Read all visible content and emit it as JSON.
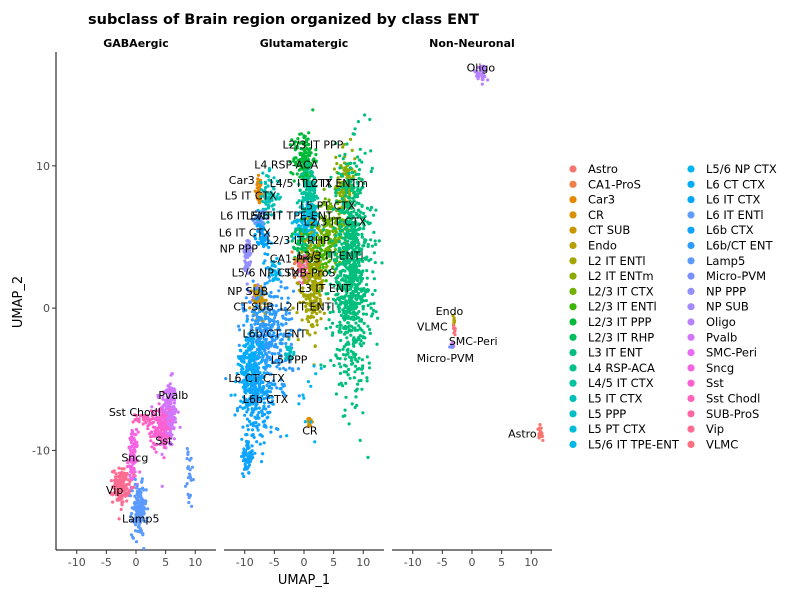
{
  "chart_data": {
    "type": "scatter",
    "title": "subclass of Brain region organized by class ENT",
    "xlabel": "UMAP_1",
    "ylabel": "UMAP_2",
    "xlim": [
      -13.5,
      13.5
    ],
    "ylim": [
      -17,
      18
    ],
    "xticks": [
      -10,
      -5,
      0,
      5,
      10
    ],
    "yticks": [
      -10,
      0,
      10
    ],
    "grid": false,
    "legend_position": "right",
    "facets": [
      {
        "name": "GABAergic",
        "clusters": [
          {
            "label": "Pvalb",
            "series": "Pvalb",
            "cx": 5.5,
            "cy": -7.5,
            "sx": 0.7,
            "sy": 1.2,
            "n": 240,
            "label_x": 6.3,
            "label_y": -6.1
          },
          {
            "label": "Sst Chodl",
            "series": "Sst Chodl",
            "cx": 1.5,
            "cy": -7.8,
            "sx": 0.8,
            "sy": 0.25,
            "n": 40,
            "label_x": -0.2,
            "label_y": -7.3
          },
          {
            "label": "Sst",
            "series": "Sst",
            "cx": 4.0,
            "cy": -8.5,
            "sx": 0.8,
            "sy": 0.7,
            "n": 120,
            "label_x": 4.7,
            "label_y": -9.3
          },
          {
            "label": "Sncg",
            "series": "Sncg",
            "cx": -0.5,
            "cy": -10.5,
            "sx": 0.4,
            "sy": 0.9,
            "n": 100,
            "label_x": -0.2,
            "label_y": -10.5
          },
          {
            "label": "Vip",
            "series": "Vip",
            "cx": -2.5,
            "cy": -12.5,
            "sx": 0.7,
            "sy": 0.6,
            "n": 150,
            "label_x": -3.6,
            "label_y": -12.8
          },
          {
            "label": "Lamp5",
            "series": "Lamp5",
            "cx": 0.5,
            "cy": -14.2,
            "sx": 0.6,
            "sy": 0.9,
            "n": 150,
            "label_x": 0.8,
            "label_y": -14.8
          },
          {
            "label": "",
            "series": "Lamp5",
            "cx": 9.0,
            "cy": -12.0,
            "sx": 0.3,
            "sy": 1.2,
            "n": 25,
            "label_x": 0,
            "label_y": 0
          }
        ]
      },
      {
        "name": "Glutamatergic",
        "clusters": [
          {
            "label": "L2/3 IT PPP",
            "series": "L2/3 IT PPP",
            "cx": 0.0,
            "cy": 10.5,
            "sx": 0.9,
            "sy": 1.0,
            "n": 150,
            "label_x": 1.5,
            "label_y": 11.5
          },
          {
            "label": "L4 RSP-ACA",
            "series": "L4 RSP-ACA",
            "cx": 1.0,
            "cy": 8.5,
            "sx": 0.6,
            "sy": 0.8,
            "n": 70,
            "label_x": -3.0,
            "label_y": 10.1
          },
          {
            "label": "Car3",
            "series": "Car3",
            "cx": -7.5,
            "cy": 8.3,
            "sx": 0.3,
            "sy": 0.5,
            "n": 35,
            "label_x": -10.5,
            "label_y": 9.0
          },
          {
            "label": "L4/5 IT CTX",
            "series": "L4/5 IT CTX",
            "cx": 1.0,
            "cy": 7.5,
            "sx": 0.8,
            "sy": 0.8,
            "n": 90,
            "label_x": -0.5,
            "label_y": 8.8
          },
          {
            "label": "L2 IT ENTm",
            "series": "L2 IT ENTm",
            "cx": 7.0,
            "cy": 8.5,
            "sx": 0.8,
            "sy": 1.3,
            "n": 130,
            "label_x": 5.5,
            "label_y": 8.8
          },
          {
            "label": "L5 IT CTX",
            "series": "L5 IT CTX",
            "cx": -6.0,
            "cy": 7.8,
            "sx": 0.9,
            "sy": 0.8,
            "n": 80,
            "label_x": -9.0,
            "label_y": 7.9
          },
          {
            "label": "L5 PT CTX",
            "series": "L5 PT CTX",
            "cx": 1.5,
            "cy": 6.0,
            "sx": 0.6,
            "sy": 0.6,
            "n": 60,
            "label_x": 4.0,
            "label_y": 7.2
          },
          {
            "label": "L6 IT ENTl",
            "series": "L6 IT ENTl",
            "cx": -7.5,
            "cy": 6.2,
            "sx": 0.5,
            "sy": 0.4,
            "n": 50,
            "label_x": -9.5,
            "label_y": 6.5
          },
          {
            "label": "L5/6 IT TPE-ENT",
            "series": "L5/6 IT TPE-ENT",
            "cx": 0.0,
            "cy": 5.8,
            "sx": 0.9,
            "sy": 0.6,
            "n": 80,
            "label_x": -2.5,
            "label_y": 6.5
          },
          {
            "label": "L2/3 IT CTX",
            "series": "L2/3 IT CTX",
            "cx": 4.5,
            "cy": 5.5,
            "sx": 1.2,
            "sy": 1.2,
            "n": 150,
            "label_x": 5.2,
            "label_y": 6.1
          },
          {
            "label": "L6 IT CTX",
            "series": "L6 IT CTX",
            "cx": -7.0,
            "cy": 5.0,
            "sx": 0.6,
            "sy": 0.5,
            "n": 50,
            "label_x": -10.0,
            "label_y": 5.3
          },
          {
            "label": "L2/3 IT RHP",
            "series": "L2/3 IT RHP",
            "cx": -0.5,
            "cy": 4.5,
            "sx": 0.8,
            "sy": 0.6,
            "n": 60,
            "label_x": -1.0,
            "label_y": 4.8
          },
          {
            "label": "NP PPP",
            "series": "NP PPP",
            "cx": -9.5,
            "cy": 3.5,
            "sx": 0.3,
            "sy": 0.9,
            "n": 60,
            "label_x": -11.0,
            "label_y": 4.2
          },
          {
            "label": "CA1-ProS",
            "series": "CA1-ProS",
            "cx": -1.0,
            "cy": 3.2,
            "sx": 0.5,
            "sy": 0.4,
            "n": 30,
            "label_x": -1.5,
            "label_y": 3.5
          },
          {
            "label": "L2/3 IT ENTl",
            "series": "L2/3 IT ENTl",
            "cx": 2.5,
            "cy": 3.5,
            "sx": 1.0,
            "sy": 0.8,
            "n": 90,
            "label_x": 4.5,
            "label_y": 3.7
          },
          {
            "label": "L3 IT ENT",
            "series": "L3 IT ENT",
            "cx": 8.0,
            "cy": 2.5,
            "sx": 1.7,
            "sy": 3.8,
            "n": 900,
            "label_x": 3.5,
            "label_y": 1.4
          },
          {
            "label": "L5/6 NP CTX",
            "series": "L5/6 NP CTX",
            "cx": -5.0,
            "cy": 2.5,
            "sx": 0.6,
            "sy": 0.4,
            "n": 40,
            "label_x": -6.5,
            "label_y": 2.5
          },
          {
            "label": "SUB-ProS",
            "series": "SUB-ProS",
            "cx": 0.0,
            "cy": 2.5,
            "sx": 0.6,
            "sy": 0.4,
            "n": 40,
            "label_x": 1.0,
            "label_y": 2.5
          },
          {
            "label": "NP SUB",
            "series": "NP SUB",
            "cx": -8.0,
            "cy": 0.8,
            "sx": 0.5,
            "sy": 0.4,
            "n": 40,
            "label_x": -9.5,
            "label_y": 1.2
          },
          {
            "label": "L2 IT ENTl",
            "series": "L2 IT ENTl",
            "cx": 1.5,
            "cy": 1.5,
            "sx": 1.0,
            "sy": 1.6,
            "n": 220,
            "label_x": 0.5,
            "label_y": 0.1
          },
          {
            "label": "CT SUB",
            "series": "CT SUB",
            "cx": -7.5,
            "cy": 0.5,
            "sx": 0.6,
            "sy": 0.6,
            "n": 60,
            "label_x": -8.5,
            "label_y": 0.1
          },
          {
            "label": "L6b/CT ENT",
            "series": "L6b/CT ENT",
            "cx": -6.0,
            "cy": -2.0,
            "sx": 2.0,
            "sy": 2.0,
            "n": 350,
            "label_x": -5.0,
            "label_y": -1.8
          },
          {
            "label": "L5 PPP",
            "series": "L5 PPP",
            "cx": -2.5,
            "cy": -3.0,
            "sx": 0.4,
            "sy": 0.3,
            "n": 20,
            "label_x": -2.5,
            "label_y": -3.6
          },
          {
            "label": "L6 CT CTX",
            "series": "L6 CT CTX",
            "cx": -9.0,
            "cy": -4.5,
            "sx": 1.0,
            "sy": 1.3,
            "n": 200,
            "label_x": -8.0,
            "label_y": -4.9
          },
          {
            "label": "L6b CTX",
            "series": "L6b CTX",
            "cx": -8.0,
            "cy": -6.5,
            "sx": 1.4,
            "sy": 1.5,
            "n": 200,
            "label_x": -6.5,
            "label_y": -6.4
          },
          {
            "label": "CR",
            "series": "CR",
            "cx": 1.0,
            "cy": -8.0,
            "sx": 0.2,
            "sy": 0.3,
            "n": 12,
            "label_x": 1.0,
            "label_y": -8.6
          },
          {
            "label": "",
            "series": "L6b CTX",
            "cx": -9.5,
            "cy": -10.5,
            "sx": 0.5,
            "sy": 0.6,
            "n": 60,
            "label_x": 0,
            "label_y": 0
          },
          {
            "label": "",
            "series": "L5/6 NP CTX",
            "cx": 1.0,
            "cy": -6.0,
            "sx": 1.5,
            "sy": 1.5,
            "n": 12,
            "label_x": 0,
            "label_y": 0
          }
        ]
      },
      {
        "name": "Non-Neuronal",
        "clusters": [
          {
            "label": "Oligo",
            "series": "Oligo",
            "cx": 1.5,
            "cy": 16.5,
            "sx": 0.6,
            "sy": 0.3,
            "n": 40,
            "label_x": 1.5,
            "label_y": 16.9
          },
          {
            "label": "Endo",
            "series": "Endo",
            "cx": -3.0,
            "cy": -0.8,
            "sx": 0.1,
            "sy": 0.2,
            "n": 8,
            "label_x": -3.8,
            "label_y": -0.2
          },
          {
            "label": "VLMC",
            "series": "VLMC",
            "cx": -3.0,
            "cy": -1.5,
            "sx": 0.1,
            "sy": 0.2,
            "n": 8,
            "label_x": -6.7,
            "label_y": -1.3
          },
          {
            "label": "SMC-Peri",
            "series": "SMC-Peri",
            "cx": -3.2,
            "cy": -2.5,
            "sx": 0.1,
            "sy": 0.1,
            "n": 4,
            "label_x": 0.2,
            "label_y": -2.3
          },
          {
            "label": "Micro-PVM",
            "series": "Micro-PVM",
            "cx": -3.5,
            "cy": -2.7,
            "sx": 0.1,
            "sy": 0.1,
            "n": 4,
            "label_x": -4.5,
            "label_y": -3.5
          },
          {
            "label": "Astro",
            "series": "Astro",
            "cx": 11.5,
            "cy": -8.8,
            "sx": 0.2,
            "sy": 0.2,
            "n": 25,
            "label_x": 8.5,
            "label_y": -8.8
          }
        ]
      }
    ],
    "legend": [
      {
        "name": "Astro",
        "color": "#F8766D"
      },
      {
        "name": "CA1-ProS",
        "color": "#EF7F49"
      },
      {
        "name": "Car3",
        "color": "#E58700"
      },
      {
        "name": "CR",
        "color": "#D89000"
      },
      {
        "name": "CT SUB",
        "color": "#C99800"
      },
      {
        "name": "Endo",
        "color": "#B79F00"
      },
      {
        "name": "L2 IT ENTl",
        "color": "#A3A500"
      },
      {
        "name": "L2 IT ENTm",
        "color": "#8CAB00"
      },
      {
        "name": "L2/3 IT CTX",
        "color": "#6FB000"
      },
      {
        "name": "L2/3 IT ENTl",
        "color": "#39B600"
      },
      {
        "name": "L2/3 IT PPP",
        "color": "#00BA38"
      },
      {
        "name": "L2/3 IT RHP",
        "color": "#00BD5C"
      },
      {
        "name": "L3 IT ENT",
        "color": "#00BF7D"
      },
      {
        "name": "L4 RSP-ACA",
        "color": "#00C08B"
      },
      {
        "name": "L4/5 IT CTX",
        "color": "#00C1A1"
      },
      {
        "name": "L5 IT CTX",
        "color": "#00C0B8"
      },
      {
        "name": "L5 PPP",
        "color": "#00BFC4"
      },
      {
        "name": "L5 PT CTX",
        "color": "#00BCD8"
      },
      {
        "name": "L5/6 IT TPE-ENT",
        "color": "#00B8E7"
      },
      {
        "name": "L5/6 NP CTX",
        "color": "#00B4F0"
      },
      {
        "name": "L6 CT CTX",
        "color": "#00ADFA"
      },
      {
        "name": "L6 IT CTX",
        "color": "#00A5FF"
      },
      {
        "name": "L6 IT ENTl",
        "color": "#619CFF"
      },
      {
        "name": "L6b CTX",
        "color": "#0FA4FF"
      },
      {
        "name": "L6b/CT ENT",
        "color": "#2D9CFF"
      },
      {
        "name": "Lamp5",
        "color": "#5B9AFE"
      },
      {
        "name": "Micro-PVM",
        "color": "#7B90FF"
      },
      {
        "name": "NP PPP",
        "color": "#9590FF"
      },
      {
        "name": "NP SUB",
        "color": "#A58AFF"
      },
      {
        "name": "Oligo",
        "color": "#B983FF"
      },
      {
        "name": "Pvalb",
        "color": "#D277FD"
      },
      {
        "name": "SMC-Peri",
        "color": "#E76BF3"
      },
      {
        "name": "Sncg",
        "color": "#F564E3"
      },
      {
        "name": "Sst",
        "color": "#FD61D1"
      },
      {
        "name": "Sst Chodl",
        "color": "#FF62BC"
      },
      {
        "name": "SUB-ProS",
        "color": "#FF67A4"
      },
      {
        "name": "Vip",
        "color": "#FF6C91"
      },
      {
        "name": "VLMC",
        "color": "#FC717F"
      }
    ]
  }
}
